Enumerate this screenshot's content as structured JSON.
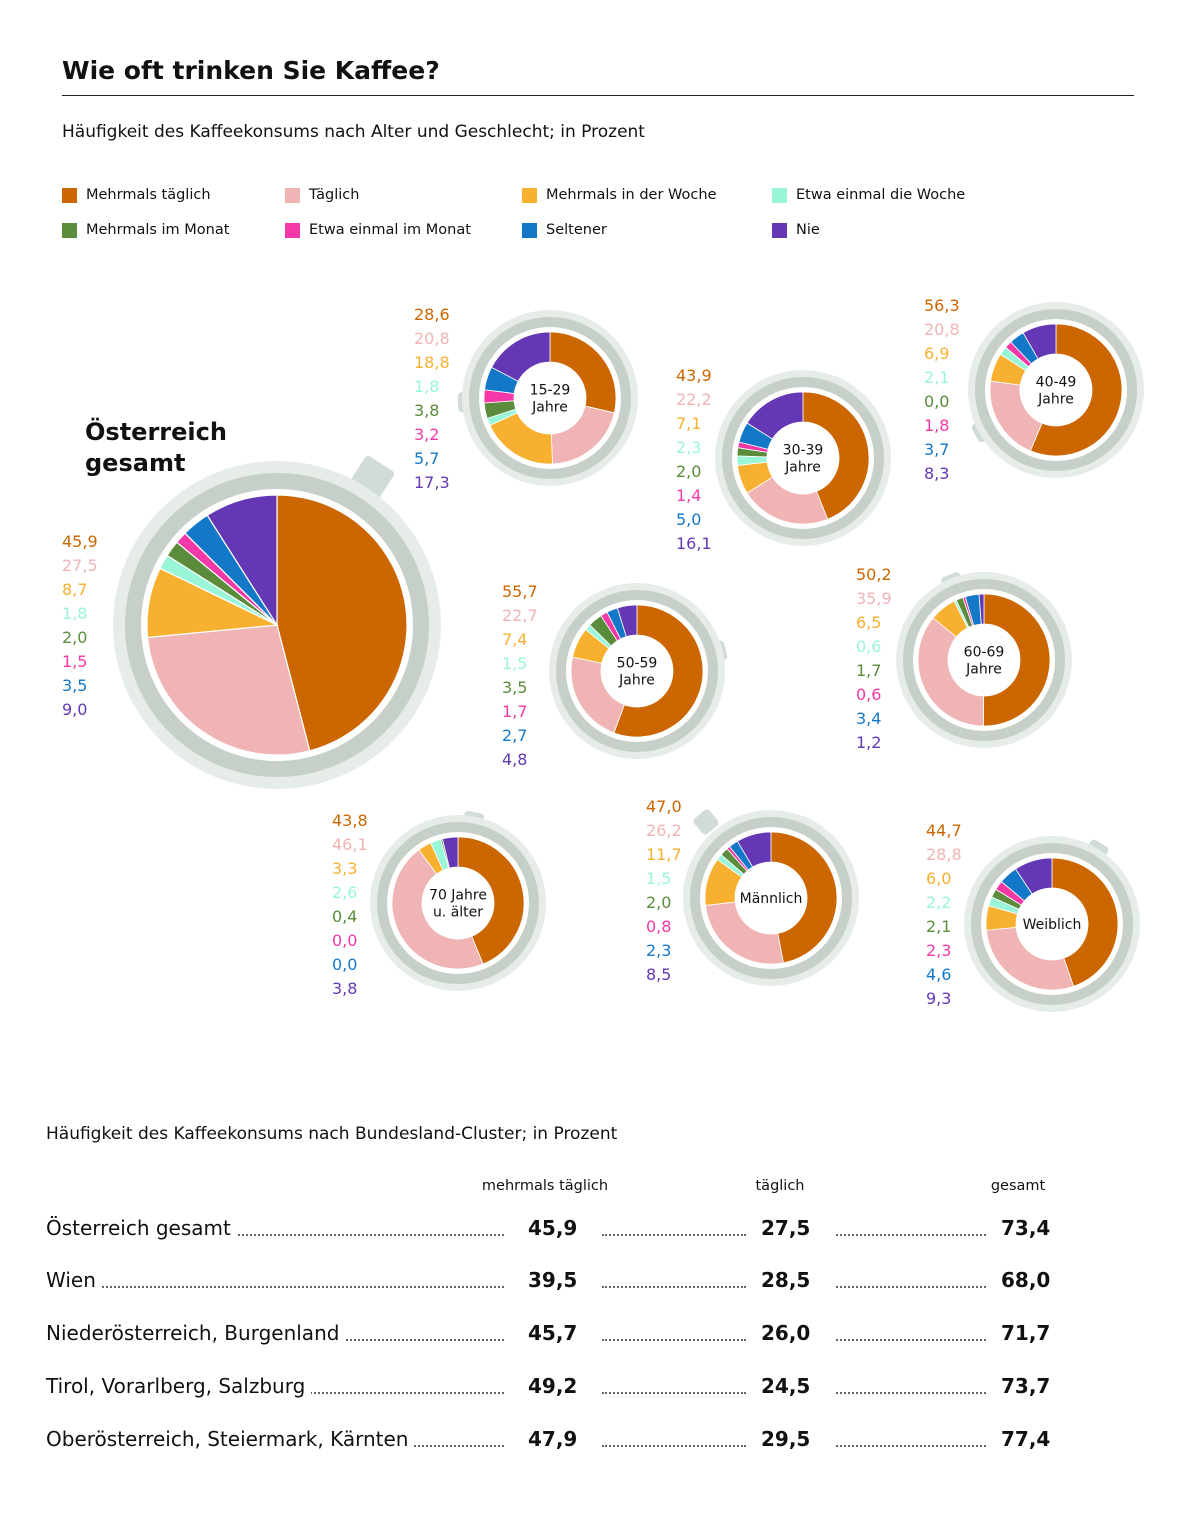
{
  "title": "Wie oft trinken Sie Kaffee?",
  "subtitle": "Häufigkeit des Kaffeekonsums nach Alter und Geschlecht; in Prozent",
  "legend": [
    {
      "label": "Mehrmals täglich",
      "color": "#cc6600"
    },
    {
      "label": "Täglich",
      "color": "#f0b4b4"
    },
    {
      "label": "Mehrmals in der Woche",
      "color": "#f8b030"
    },
    {
      "label": "Etwa einmal die Woche",
      "color": "#99f5d8"
    },
    {
      "label": "Mehrmals im Monat",
      "color": "#5a8c3c"
    },
    {
      "label": "Etwa einmal im Monat",
      "color": "#f538a8"
    },
    {
      "label": "Seltener",
      "color": "#1478c8"
    },
    {
      "label": "Nie",
      "color": "#6438b4"
    }
  ],
  "chart_data": [
    {
      "type": "pie",
      "title": "Österreich gesamt",
      "values": [
        45.9,
        27.5,
        8.7,
        1.8,
        2.0,
        1.5,
        3.5,
        9.0
      ],
      "labels": [
        "45,9",
        "27,5",
        "8,7",
        "1,8",
        "2,0",
        "1,5",
        "3,5",
        "9,0"
      ]
    },
    {
      "type": "pie",
      "title": "15-29 Jahre",
      "title_lines": [
        "15-29",
        "Jahre"
      ],
      "values": [
        28.6,
        20.8,
        18.8,
        1.8,
        3.8,
        3.2,
        5.7,
        17.3
      ],
      "labels": [
        "28,6",
        "20,8",
        "18,8",
        "1,8",
        "3,8",
        "3,2",
        "5,7",
        "17,3"
      ]
    },
    {
      "type": "pie",
      "title": "30-39 Jahre",
      "title_lines": [
        "30-39",
        "Jahre"
      ],
      "values": [
        43.9,
        22.2,
        7.1,
        2.3,
        2.0,
        1.4,
        5.0,
        16.1
      ],
      "labels": [
        "43,9",
        "22,2",
        "7,1",
        "2,3",
        "2,0",
        "1,4",
        "5,0",
        "16,1"
      ]
    },
    {
      "type": "pie",
      "title": "40-49 Jahre",
      "title_lines": [
        "40-49",
        "Jahre"
      ],
      "values": [
        56.3,
        20.8,
        6.9,
        2.1,
        0.0,
        1.8,
        3.7,
        8.3
      ],
      "labels": [
        "56,3",
        "20,8",
        "6,9",
        "2,1",
        "0,0",
        "1,8",
        "3,7",
        "8,3"
      ]
    },
    {
      "type": "pie",
      "title": "50-59 Jahre",
      "title_lines": [
        "50-59",
        "Jahre"
      ],
      "values": [
        55.7,
        22.7,
        7.4,
        1.5,
        3.5,
        1.7,
        2.7,
        4.8
      ],
      "labels": [
        "55,7",
        "22,7",
        "7,4",
        "1,5",
        "3,5",
        "1,7",
        "2,7",
        "4,8"
      ]
    },
    {
      "type": "pie",
      "title": "60-69 Jahre",
      "title_lines": [
        "60-69",
        "Jahre"
      ],
      "values": [
        50.2,
        35.9,
        6.5,
        0.6,
        1.7,
        0.6,
        3.4,
        1.2
      ],
      "labels": [
        "50,2",
        "35,9",
        "6,5",
        "0,6",
        "1,7",
        "0,6",
        "3,4",
        "1,2"
      ]
    },
    {
      "type": "pie",
      "title": "70 Jahre u. älter",
      "title_lines": [
        "70 Jahre",
        "u. älter"
      ],
      "values": [
        43.8,
        46.1,
        3.3,
        2.6,
        0.4,
        0.0,
        0.0,
        3.8
      ],
      "labels": [
        "43,8",
        "46,1",
        "3,3",
        "2,6",
        "0,4",
        "0,0",
        "0,0",
        "3,8"
      ]
    },
    {
      "type": "pie",
      "title": "Männlich",
      "title_lines": [
        "Männlich"
      ],
      "values": [
        47.0,
        26.2,
        11.7,
        1.5,
        2.0,
        0.8,
        2.3,
        8.5
      ],
      "labels": [
        "47,0",
        "26,2",
        "11,7",
        "1,5",
        "2,0",
        "0,8",
        "2,3",
        "8,5"
      ]
    },
    {
      "type": "pie",
      "title": "Weiblich",
      "title_lines": [
        "Weiblich"
      ],
      "values": [
        44.7,
        28.8,
        6.0,
        2.2,
        2.1,
        2.3,
        4.6,
        9.3
      ],
      "labels": [
        "44,7",
        "28,8",
        "6,0",
        "2,2",
        "2,1",
        "2,3",
        "4,6",
        "9,3"
      ]
    },
    {
      "type": "table",
      "title": "Häufigkeit des Kaffeekonsums nach Bundesland-Cluster; in Prozent",
      "columns": [
        "mehrmals täglich",
        "täglich",
        "gesamt"
      ],
      "rows": [
        {
          "name": "Österreich gesamt",
          "values": [
            "45,9",
            "27,5",
            "73,4"
          ]
        },
        {
          "name": "Wien",
          "values": [
            "39,5",
            "28,5",
            "68,0"
          ]
        },
        {
          "name": "Niederösterreich, Burgenland",
          "values": [
            "45,7",
            "26,0",
            "71,7"
          ]
        },
        {
          "name": "Tirol, Vorarlberg, Salzburg",
          "values": [
            "49,2",
            "24,5",
            "73,7"
          ]
        },
        {
          "name": "Oberösterreich, Steiermark, Kärnten",
          "values": [
            "47,9",
            "29,5",
            "77,4"
          ]
        }
      ]
    }
  ]
}
